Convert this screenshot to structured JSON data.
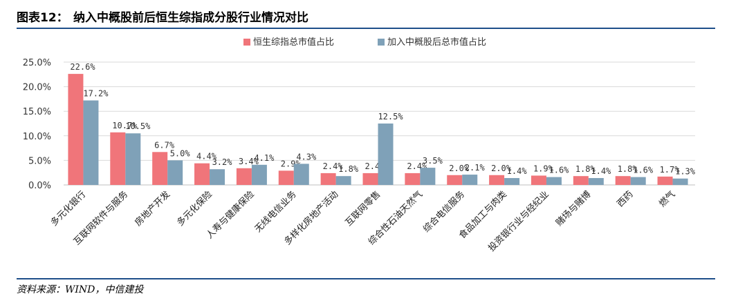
{
  "header": {
    "figure_number": "图表12：",
    "title": "纳入中概股前后恒生综指成分股行业情况对比"
  },
  "footer": {
    "source": "资料来源：WIND，中信建投"
  },
  "colors": {
    "series_1": "#f0757a",
    "series_2": "#7fa1b8",
    "rule": "#1d4e89"
  },
  "chart_data": {
    "type": "bar",
    "title": "",
    "xlabel": "",
    "ylabel": "",
    "ylim": [
      0,
      25
    ],
    "yticks": [
      "0.0%",
      "5.0%",
      "10.0%",
      "15.0%",
      "20.0%",
      "25.0%"
    ],
    "grid": true,
    "legend_position": "top-center",
    "categories": [
      "多元化银行",
      "互联网软件与服务",
      "房地产开发",
      "多元化保险",
      "人寿与健康保险",
      "无线电信业务",
      "多样化房地产活动",
      "互联网零售",
      "综合性石油天然气",
      "综合电信服务",
      "食品加工与肉类",
      "投资银行业与经纪业",
      "赌场与赌博",
      "西药",
      "燃气"
    ],
    "series": [
      {
        "name": "恒生综指总市值占比",
        "values": [
          22.6,
          10.7,
          6.7,
          4.4,
          3.4,
          2.9,
          2.4,
          2.4,
          2.4,
          2.0,
          2.0,
          1.9,
          1.8,
          1.8,
          1.7
        ],
        "labels": [
          "22.6%",
          "10.7%",
          "6.7%",
          "4.4%",
          "3.4%",
          "2.9%",
          "2.4%",
          "2.4%",
          "2.4%",
          "2.0%",
          "2.0%",
          "1.9%",
          "1.8%",
          "1.8%",
          "1.7%"
        ]
      },
      {
        "name": "加入中概股后总市值占比",
        "values": [
          17.2,
          10.5,
          5.0,
          3.2,
          4.1,
          4.3,
          1.8,
          12.5,
          3.5,
          2.1,
          1.4,
          1.6,
          1.4,
          1.6,
          1.3
        ],
        "labels": [
          "17.2%",
          "10.5%",
          "5.0%",
          "3.2%",
          "4.1%",
          "4.3%",
          "1.8%",
          "12.5%",
          "3.5%",
          "2.1%",
          "1.4%",
          "1.6%",
          "1.4%",
          "1.6%",
          "1.3%"
        ]
      }
    ]
  }
}
